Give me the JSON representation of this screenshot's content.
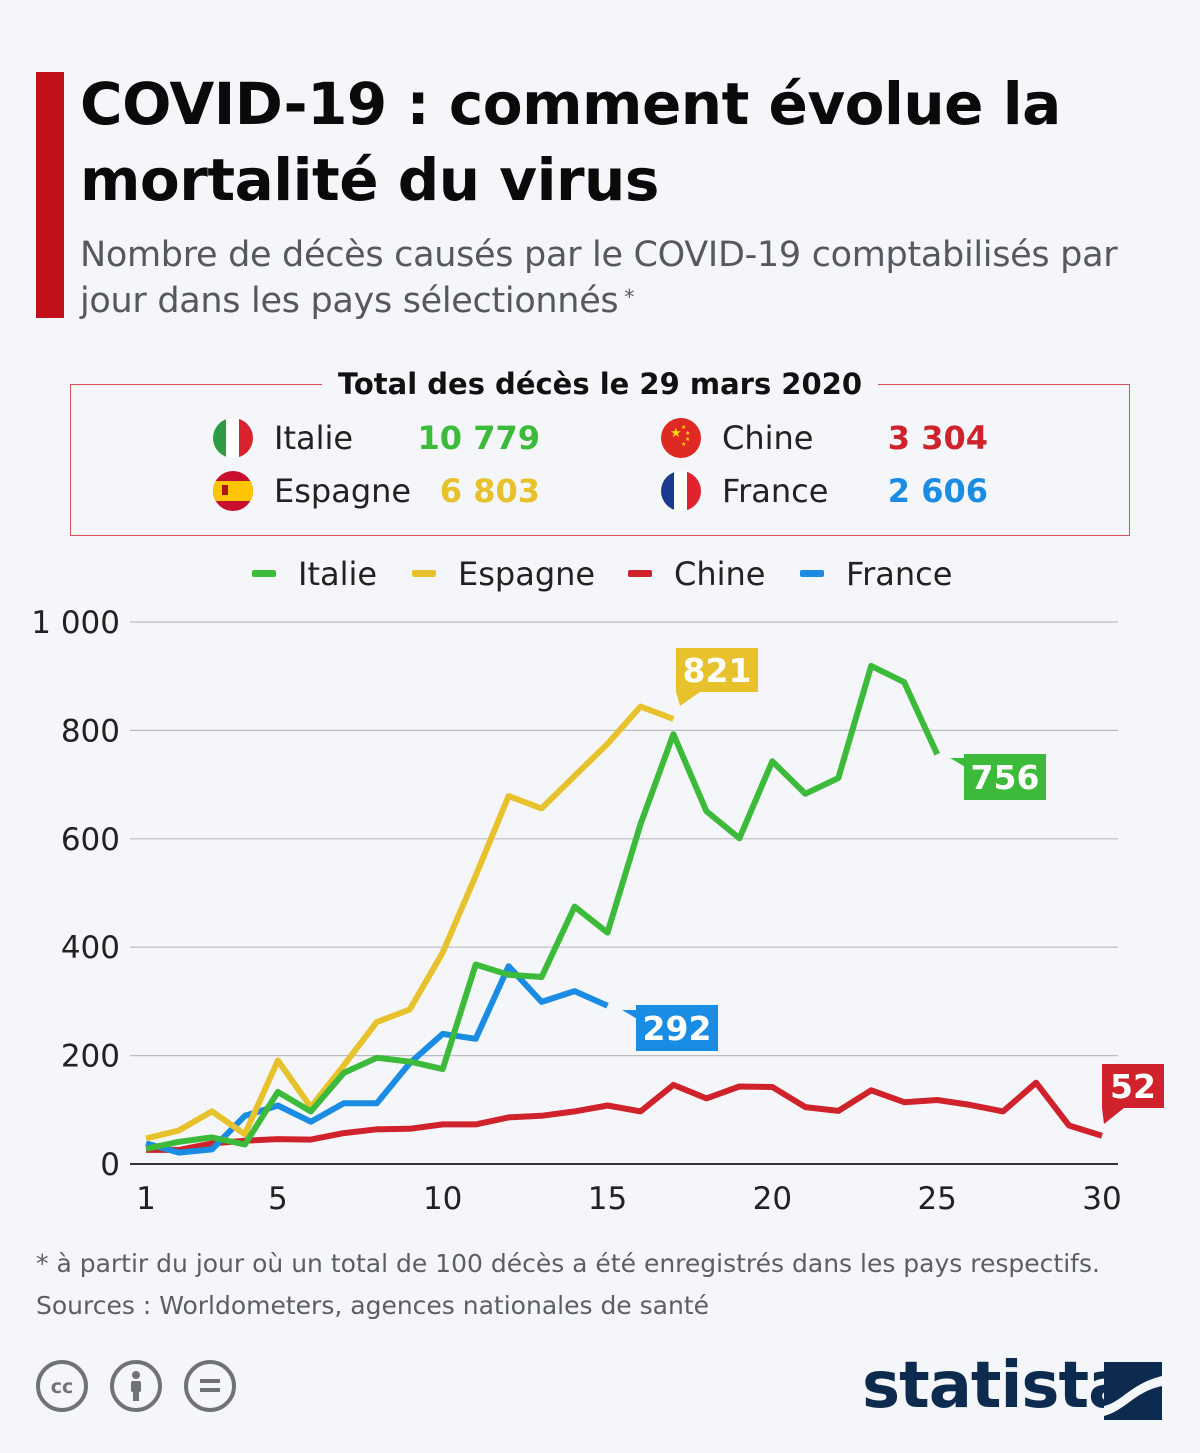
{
  "header": {
    "title": "COVID-19 : comment évolue la mortalité du virus",
    "subtitle": "Nombre de décès causés par le COVID-19 comptabilisés par jour dans les pays sélectionnés",
    "subtitle_mark": "*"
  },
  "totals": {
    "title": "Total des décès le 29 mars 2020",
    "rows": [
      {
        "country": "Italie",
        "value": "10 779",
        "color": "#3cba3a",
        "flag": "italy-flag-icon"
      },
      {
        "country": "Chine",
        "value": "3 304",
        "color": "#d0222b",
        "flag": "china-flag-icon"
      },
      {
        "country": "Espagne",
        "value": "6 803",
        "color": "#e8c22c",
        "flag": "spain-flag-icon"
      },
      {
        "country": "France",
        "value": "2 606",
        "color": "#1b8ce3",
        "flag": "france-flag-icon"
      }
    ]
  },
  "chart_data": {
    "type": "line",
    "legend_position": "top",
    "grid": true,
    "xlim": [
      1,
      30
    ],
    "ylim": [
      0,
      1000
    ],
    "x_ticks": [
      1,
      5,
      10,
      15,
      20,
      25,
      30
    ],
    "y_ticks": [
      0,
      200,
      400,
      600,
      800,
      1000
    ],
    "y_tick_labels": [
      "0",
      "200",
      "400",
      "600",
      "800",
      "1 000"
    ],
    "series": [
      {
        "name": "Italie",
        "color": "#3cba3a",
        "end_label": "756",
        "x": [
          1,
          2,
          3,
          4,
          5,
          6,
          7,
          8,
          9,
          10,
          11,
          12,
          13,
          14,
          15,
          16,
          17,
          18,
          19,
          20,
          21,
          22,
          23,
          24,
          25
        ],
        "values": [
          28,
          41,
          49,
          36,
          133,
          97,
          168,
          196,
          189,
          175,
          368,
          349,
          345,
          475,
          427,
          627,
          793,
          651,
          601,
          743,
          683,
          712,
          919,
          889,
          756
        ]
      },
      {
        "name": "Espagne",
        "color": "#e8c22c",
        "end_label": "821",
        "x": [
          1,
          2,
          3,
          4,
          5,
          6,
          7,
          8,
          9,
          10,
          11,
          12,
          13,
          14,
          15,
          16,
          17
        ],
        "values": [
          47,
          62,
          97,
          55,
          191,
          105,
          182,
          262,
          285,
          390,
          532,
          679,
          656,
          716,
          775,
          844,
          821
        ]
      },
      {
        "name": "Chine",
        "color": "#d0222b",
        "end_label": "52",
        "x": [
          1,
          2,
          3,
          4,
          5,
          6,
          7,
          8,
          9,
          10,
          11,
          12,
          13,
          14,
          15,
          16,
          17,
          18,
          19,
          20,
          21,
          22,
          23,
          24,
          25,
          26,
          27,
          28,
          29,
          30
        ],
        "values": [
          26,
          26,
          38,
          43,
          46,
          45,
          57,
          64,
          65,
          73,
          73,
          86,
          89,
          97,
          108,
          97,
          146,
          121,
          143,
          142,
          105,
          98,
          136,
          114,
          118,
          109,
          97,
          150,
          71,
          52
        ]
      },
      {
        "name": "France",
        "color": "#1b8ce3",
        "end_label": "292",
        "x": [
          1,
          2,
          3,
          4,
          5,
          6,
          7,
          8,
          9,
          10,
          11,
          12,
          13,
          14,
          15
        ],
        "values": [
          38,
          21,
          27,
          89,
          108,
          78,
          112,
          112,
          186,
          240,
          231,
          365,
          299,
          319,
          292
        ]
      }
    ]
  },
  "footer": {
    "note": "* à partir du jour où un total de 100 décès a été enregistrés dans les pays respectifs.",
    "sources": "Sources : Worldometers, agences nationales de santé",
    "license_icons": [
      "cc-icon",
      "attribution-icon",
      "no-derivatives-icon"
    ],
    "brand": "statista"
  }
}
